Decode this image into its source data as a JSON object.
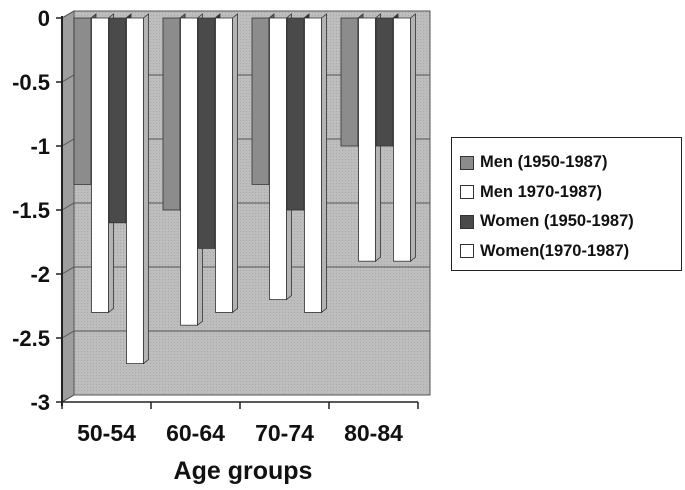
{
  "chart_data": {
    "type": "bar",
    "xlabel": "Age groups",
    "ylabel": "",
    "ylim": [
      -3,
      0
    ],
    "yticks": [
      "0",
      "-0.5",
      "-1",
      "-1.5",
      "-2",
      "-2.5",
      "-3"
    ],
    "categories": [
      "50-54",
      "60-64",
      "70-74",
      "80-84"
    ],
    "series": [
      {
        "name": "Men (1950-1987)",
        "color": "#8c8c8c",
        "values": [
          -1.3,
          -1.5,
          -1.3,
          -1.0
        ]
      },
      {
        "name": "Men 1970-1987)",
        "color": "#ffffff",
        "values": [
          -2.3,
          -2.4,
          -2.2,
          -1.9
        ]
      },
      {
        "name": "Women (1950-1987)",
        "color": "#4a4a4a",
        "values": [
          -1.6,
          -1.8,
          -1.5,
          -1.0
        ]
      },
      {
        "name": "Women(1970-1987)",
        "color": "#ffffff",
        "values": [
          -2.7,
          -2.3,
          -2.3,
          -1.9
        ]
      }
    ],
    "grid": true,
    "legend_position": "right"
  }
}
